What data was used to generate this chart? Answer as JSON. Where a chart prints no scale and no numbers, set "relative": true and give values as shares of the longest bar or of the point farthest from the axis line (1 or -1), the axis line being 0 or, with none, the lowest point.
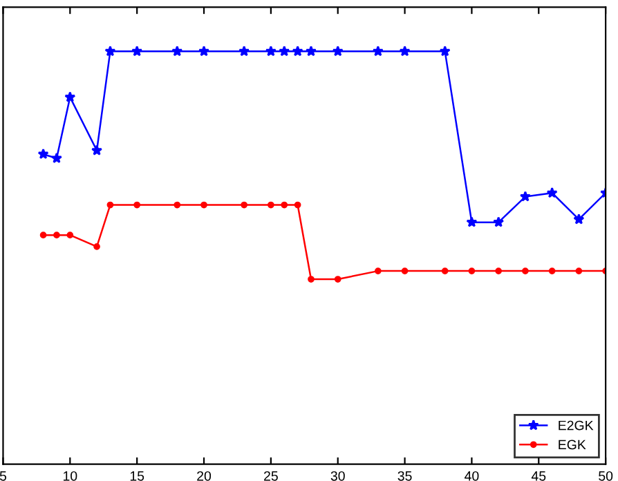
{
  "chart_data": {
    "type": "line",
    "relative": true,
    "x": [
      8,
      9,
      10,
      12,
      13,
      15,
      18,
      20,
      23,
      25,
      26,
      27,
      28,
      30,
      33,
      35,
      38,
      40,
      42,
      44,
      46,
      48,
      50
    ],
    "xlim": [
      5,
      50
    ],
    "xticks": [
      5,
      10,
      15,
      20,
      25,
      30,
      35,
      40,
      45,
      50
    ],
    "series": [
      {
        "name": "E2GK",
        "color": "#0000ff",
        "marker": "star",
        "values": [
          0.751,
          0.741,
          0.889,
          0.76,
          1,
          1,
          1,
          1,
          1,
          1,
          1,
          1,
          1,
          1,
          1,
          1,
          1,
          0.586,
          0.586,
          0.648,
          0.657,
          0.593,
          0.657
        ]
      },
      {
        "name": "EGK",
        "color": "#ff0000",
        "marker": "circle",
        "values": [
          0.555,
          0.555,
          0.555,
          0.527,
          0.628,
          0.628,
          0.628,
          0.628,
          0.628,
          0.628,
          0.628,
          0.628,
          0.448,
          0.448,
          0.468,
          0.468,
          0.468,
          0.468,
          0.468,
          0.468,
          0.468,
          0.468,
          0.468
        ]
      }
    ],
    "legend": "bottom right",
    "grid": false,
    "line_style": "solid"
  }
}
